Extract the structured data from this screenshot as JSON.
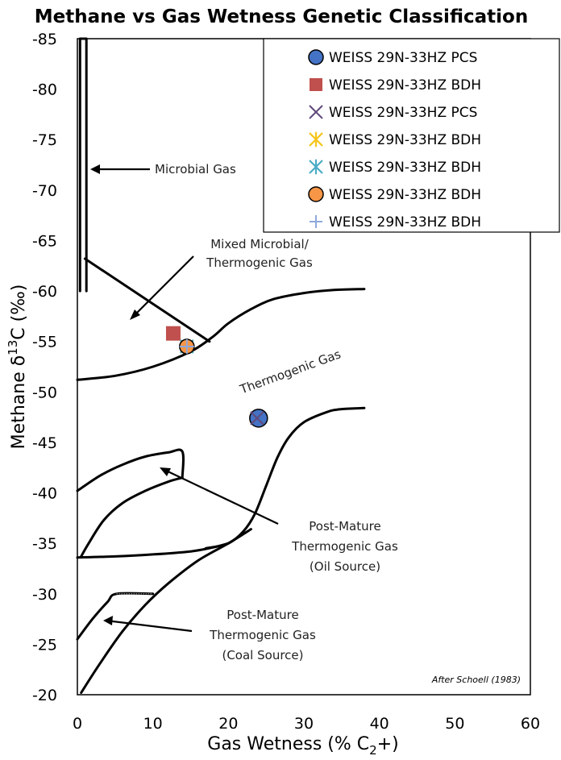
{
  "chart_data": {
    "type": "scatter",
    "title": "Methane vs Gas Wetness Genetic Classification",
    "xlabel": {
      "main": "Gas Wetness (% C",
      "sub": "2",
      "tail": "+)"
    },
    "ylabel": {
      "main": "Methane  δ",
      "sup": "13",
      "tail": "C (‰)"
    },
    "xlim": [
      0,
      60
    ],
    "ylim": [
      -20,
      -85
    ],
    "x_ticks": [
      0,
      10,
      20,
      30,
      40,
      50,
      60
    ],
    "y_ticks": [
      -20,
      -25,
      -30,
      -35,
      -40,
      -45,
      -50,
      -55,
      -60,
      -65,
      -70,
      -75,
      -80,
      -85
    ],
    "legend_position": "top-right",
    "series": [
      {
        "name": "WEISS 29N-33HZ PCS",
        "marker": "circle",
        "color": "#4472c4",
        "points": [
          [
            24.0,
            -47.4
          ]
        ]
      },
      {
        "name": "WEISS 29N-33HZ BDH",
        "marker": "square",
        "color": "#c0504d",
        "points": [
          [
            12.7,
            -55.8
          ]
        ]
      },
      {
        "name": "WEISS 29N-33HZ PCS",
        "marker": "x",
        "color": "#604a7b",
        "points": [
          [
            23.8,
            -47.4
          ]
        ]
      },
      {
        "name": "WEISS 29N-33HZ BDH",
        "marker": "star",
        "color": "#f5c518",
        "points": [
          [
            14.5,
            -54.5
          ]
        ]
      },
      {
        "name": "WEISS 29N-33HZ BDH",
        "marker": "asterisk",
        "color": "#4bacc6",
        "points": [
          [
            14.5,
            -54.5
          ]
        ]
      },
      {
        "name": "WEISS 29N-33HZ BDH",
        "marker": "circle",
        "color": "#f79646",
        "points": [
          [
            14.5,
            -54.5
          ]
        ]
      },
      {
        "name": "WEISS 29N-33HZ BDH",
        "marker": "plus",
        "color": "#8ea9db",
        "points": [
          [
            14.5,
            -54.5
          ]
        ]
      }
    ],
    "boundaries": {
      "microbial": [
        [
          0.35,
          -60
        ],
        [
          0.35,
          -85
        ],
        [
          1.2,
          -85
        ],
        [
          1.2,
          -60
        ]
      ],
      "mixed_line": [
        [
          1.0,
          -63.2
        ],
        [
          17.5,
          -55.0
        ]
      ],
      "thermo_upper": [
        [
          0,
          -51.2
        ],
        [
          5,
          -51.6
        ],
        [
          10,
          -52.5
        ],
        [
          15,
          -54.0
        ],
        [
          18,
          -55.5
        ],
        [
          20,
          -56.8
        ],
        [
          23,
          -58.2
        ],
        [
          26,
          -59.2
        ],
        [
          30,
          -59.8
        ],
        [
          34,
          -60.1
        ],
        [
          38,
          -60.2
        ]
      ],
      "oil_upper": [
        [
          0,
          -40.2
        ],
        [
          3,
          -41.7
        ],
        [
          6,
          -42.8
        ],
        [
          9,
          -43.6
        ],
        [
          12,
          -44.0
        ],
        [
          13.9,
          -44.1
        ],
        [
          13.9,
          -41.5
        ]
      ],
      "oil_lower": [
        [
          0.5,
          -33.7
        ],
        [
          1.5,
          -35.0
        ],
        [
          3.5,
          -37.3
        ],
        [
          6,
          -39.0
        ],
        [
          9,
          -40.2
        ],
        [
          12,
          -41.1
        ],
        [
          13.9,
          -41.5
        ]
      ],
      "oil_bottom": [
        [
          0,
          -33.6
        ],
        [
          5,
          -33.7
        ],
        [
          10,
          -33.9
        ],
        [
          15,
          -34.2
        ],
        [
          18,
          -34.6
        ],
        [
          20,
          -35.0
        ]
      ],
      "post_oil": [
        [
          17,
          -34.5
        ],
        [
          20,
          -35.0
        ],
        [
          22,
          -36.2
        ],
        [
          23.5,
          -37.9
        ],
        [
          25,
          -40.7
        ],
        [
          26.5,
          -43.5
        ],
        [
          28,
          -45.5
        ],
        [
          30,
          -47.0
        ],
        [
          33,
          -48.0
        ],
        [
          35,
          -48.3
        ],
        [
          38,
          -48.4
        ]
      ],
      "coal_lower": [
        [
          0.5,
          -20.2
        ],
        [
          3,
          -23.1
        ],
        [
          6,
          -26.3
        ],
        [
          9,
          -28.9
        ],
        [
          12,
          -31.0
        ],
        [
          16,
          -33.3
        ],
        [
          20,
          -35.0
        ],
        [
          23,
          -36.4
        ]
      ],
      "coal_upper": [
        [
          0,
          -25.5
        ],
        [
          2,
          -27.5
        ],
        [
          4,
          -29.2
        ],
        [
          5.2,
          -30.0
        ],
        [
          10,
          -30.0
        ]
      ]
    },
    "annotations": {
      "microbial": "Microbial Gas",
      "mixed_line1": "Mixed Microbial/",
      "mixed_line2": "Thermogenic Gas",
      "thermogenic": "Thermogenic Gas",
      "oil_line1": "Post-Mature",
      "oil_line2": "Thermogenic Gas",
      "oil_line3": "(Oil Source)",
      "coal_line1": "Post-Mature",
      "coal_line2": "Thermogenic Gas",
      "coal_line3": "(Coal Source)",
      "credit": "After Schoell (1983)"
    },
    "colors": {
      "frame": "#000000",
      "boundary": "#000000"
    }
  }
}
